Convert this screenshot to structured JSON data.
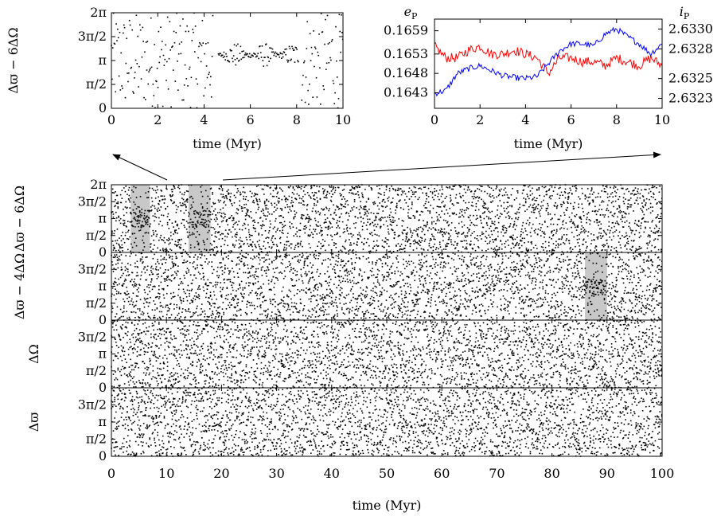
{
  "chart_data": [
    {
      "id": "inset-left",
      "type": "scatter",
      "xlabel": "time (Myr)",
      "ylabel": "Δϖ − 6ΔΩ",
      "xlim": [
        0,
        10
      ],
      "ylim": [
        0,
        6.2832
      ],
      "xticks": [
        "0",
        "2",
        "4",
        "6",
        "8",
        "10"
      ],
      "yticks": [
        "0",
        "π/2",
        "π",
        "3π/2",
        "2π"
      ],
      "segments": [
        {
          "range": [
            0,
            4.4
          ],
          "behavior": "circulating"
        },
        {
          "range": [
            4.6,
            8.1
          ],
          "behavior": "librating",
          "center": 3.5,
          "amplitude": 0.8
        },
        {
          "range": [
            8.2,
            10
          ],
          "behavior": "circulating"
        }
      ]
    },
    {
      "id": "inset-right",
      "type": "line",
      "xlabel": "time (Myr)",
      "xlim": [
        0,
        10
      ],
      "xticks": [
        "0",
        "2",
        "4",
        "6",
        "8",
        "10"
      ],
      "y_left": {
        "label": "e",
        "sub": "P",
        "color": "#ff0000",
        "ticks": [
          "0.1643",
          "0.1648",
          "0.1653",
          "0.1659"
        ],
        "ylim": [
          0.1639,
          0.1662
        ]
      },
      "y_right": {
        "label": "i",
        "sub": "P",
        "color": "#0000ff",
        "ticks": [
          "2.6323",
          "2.6325",
          "2.6328",
          "2.6330"
        ],
        "ylim": [
          2.6322,
          2.6331
        ]
      },
      "series": [
        {
          "color": "#ff0000",
          "x": [
            0,
            0.5,
            1,
            1.5,
            2,
            2.5,
            3,
            3.5,
            4,
            4.5,
            5,
            5.5,
            6,
            6.5,
            7,
            7.5,
            8,
            8.5,
            9,
            9.5,
            10
          ],
          "y": [
            0.1655,
            0.1652,
            0.1652,
            0.1654,
            0.1655,
            0.1653,
            0.1653,
            0.1654,
            0.1653,
            0.1652,
            0.1648,
            0.1652,
            0.1652,
            0.1651,
            0.1651,
            0.165,
            0.1652,
            0.1651,
            0.165,
            0.1652,
            0.165
          ]
        },
        {
          "color": "#0000ff",
          "x": [
            0,
            0.5,
            1,
            1.5,
            2,
            2.5,
            3,
            3.5,
            4,
            4.5,
            5,
            5.5,
            6,
            6.5,
            7,
            7.5,
            8,
            8.5,
            9,
            9.5,
            10
          ],
          "y": [
            2.63235,
            2.63238,
            2.63255,
            2.6326,
            2.63263,
            2.63258,
            2.63253,
            2.63251,
            2.6325,
            2.63252,
            2.63265,
            2.63278,
            2.63285,
            2.63285,
            2.63283,
            2.63295,
            2.633,
            2.63292,
            2.63285,
            2.63275,
            2.63285
          ]
        }
      ]
    },
    {
      "id": "main",
      "type": "scatter",
      "xlabel": "time (Myr)",
      "xlim": [
        0,
        100
      ],
      "xticks": [
        "0",
        "10",
        "20",
        "30",
        "40",
        "50",
        "60",
        "70",
        "80",
        "90",
        "100"
      ],
      "panels": [
        {
          "ylabel": "Δϖ − 6ΔΩ",
          "yticks": [
            "0",
            "π/2",
            "π",
            "3π/2",
            "2π"
          ],
          "shaded": [
            [
              3.5,
              7
            ],
            [
              14,
              18
            ]
          ]
        },
        {
          "ylabel": "Δϖ − 4ΔΩ",
          "yticks": [
            "0",
            "π/2",
            "π",
            "3π/2"
          ],
          "shaded": [
            [
              86,
              90
            ]
          ]
        },
        {
          "ylabel": "ΔΩ",
          "yticks": [
            "0",
            "π/2",
            "π",
            "3π/2"
          ],
          "shaded": []
        },
        {
          "ylabel": "Δϖ",
          "yticks": [
            "0",
            "π/2",
            "π",
            "3π/2"
          ],
          "shaded": []
        }
      ]
    }
  ]
}
